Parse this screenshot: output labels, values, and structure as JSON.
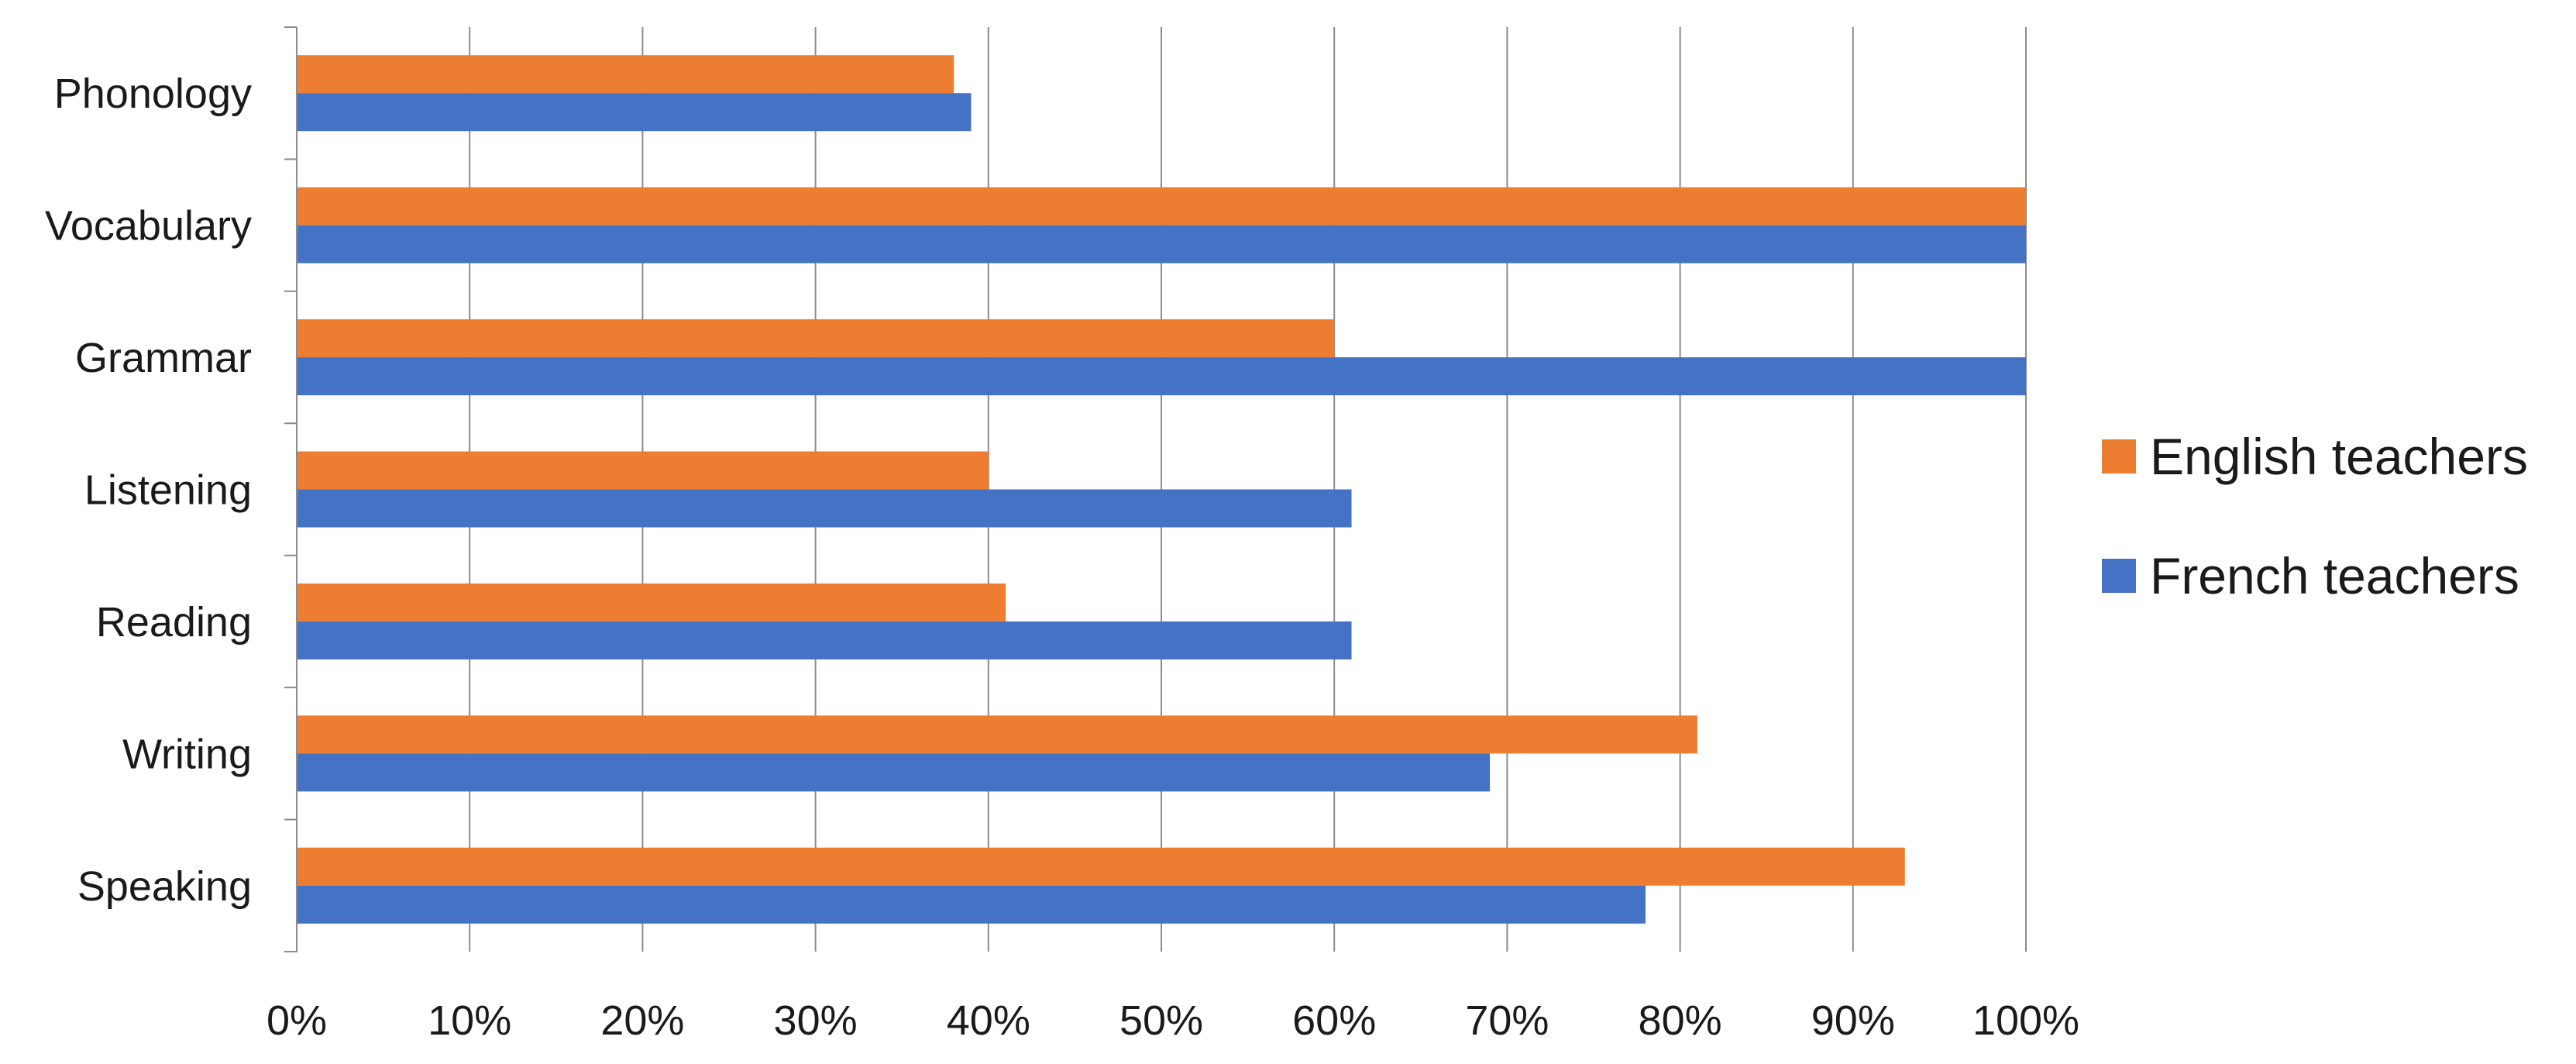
{
  "chart_data": {
    "type": "bar",
    "orientation": "horizontal",
    "categories": [
      "Phonology",
      "Vocabulary",
      "Grammar",
      "Listening",
      "Reading",
      "Writing",
      "Speaking"
    ],
    "series": [
      {
        "name": "English teachers",
        "color": "#ED7D31",
        "values": [
          38,
          100,
          60,
          40,
          41,
          81,
          93
        ]
      },
      {
        "name": "French teachers",
        "color": "#4472C4",
        "values": [
          39,
          100,
          100,
          61,
          61,
          69,
          78
        ]
      }
    ],
    "x_ticks": [
      "0%",
      "10%",
      "20%",
      "30%",
      "40%",
      "50%",
      "60%",
      "70%",
      "80%",
      "90%",
      "100%"
    ],
    "xlim": [
      0,
      100
    ],
    "unit": "%",
    "grid": "vertical",
    "legend_position": "right",
    "title": "",
    "xlabel": "",
    "ylabel": ""
  }
}
